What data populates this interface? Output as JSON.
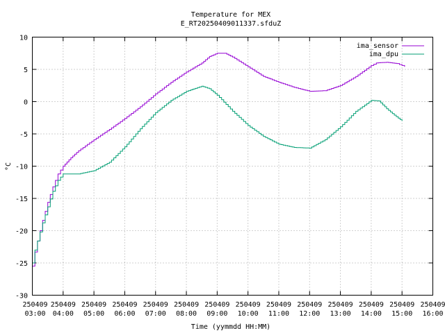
{
  "chart_data": {
    "type": "line",
    "title": "Temperature for MEX",
    "subtitle": "E_RT20250409011337.sfduZ",
    "xlabel": "Time (yymmdd HH:MM)",
    "ylabel": "°C",
    "ylim": [
      -30,
      10
    ],
    "yticks": [
      -30,
      -25,
      -20,
      -15,
      -10,
      -5,
      0,
      5,
      10
    ],
    "xlim": [
      "2025-04-09 03:00",
      "2025-04-09 16:00"
    ],
    "xtick_labels": [
      [
        "250409",
        "03:00"
      ],
      [
        "250409",
        "04:00"
      ],
      [
        "250409",
        "05:00"
      ],
      [
        "250409",
        "06:00"
      ],
      [
        "250409",
        "07:00"
      ],
      [
        "250409",
        "08:00"
      ],
      [
        "250409",
        "09:00"
      ],
      [
        "250409",
        "10:00"
      ],
      [
        "250409",
        "11:00"
      ],
      [
        "250409",
        "12:00"
      ],
      [
        "250409",
        "13:00"
      ],
      [
        "250409",
        "14:00"
      ],
      [
        "250409",
        "15:00"
      ],
      [
        "250409",
        "16:00"
      ]
    ],
    "grid": true,
    "legend_position": "top-right",
    "step": true,
    "series": [
      {
        "name": "ima_sensor",
        "color": "#9400d3",
        "points": [
          [
            "03:00",
            -25.5
          ],
          [
            "03:05",
            -23.3
          ],
          [
            "03:10",
            -21.6
          ],
          [
            "03:20",
            -18.4
          ],
          [
            "03:30",
            -15.6
          ],
          [
            "03:40",
            -13.2
          ],
          [
            "03:50",
            -11.2
          ],
          [
            "04:00",
            -10.0
          ],
          [
            "04:15",
            -8.7
          ],
          [
            "04:30",
            -7.6
          ],
          [
            "05:00",
            -5.9
          ],
          [
            "05:30",
            -4.3
          ],
          [
            "06:00",
            -2.6
          ],
          [
            "06:30",
            -0.8
          ],
          [
            "07:00",
            1.2
          ],
          [
            "07:30",
            3.0
          ],
          [
            "08:00",
            4.6
          ],
          [
            "08:30",
            6.0
          ],
          [
            "08:45",
            7.0
          ],
          [
            "09:00",
            7.5
          ],
          [
            "09:15",
            7.5
          ],
          [
            "09:30",
            6.9
          ],
          [
            "10:00",
            5.4
          ],
          [
            "10:30",
            3.9
          ],
          [
            "11:00",
            3.0
          ],
          [
            "11:30",
            2.2
          ],
          [
            "12:00",
            1.6
          ],
          [
            "12:30",
            1.7
          ],
          [
            "13:00",
            2.5
          ],
          [
            "13:30",
            3.9
          ],
          [
            "14:00",
            5.6
          ],
          [
            "14:10",
            6.0
          ],
          [
            "14:30",
            6.1
          ],
          [
            "14:50",
            5.9
          ],
          [
            "15:00",
            5.6
          ],
          [
            "15:05",
            5.4
          ]
        ]
      },
      {
        "name": "ima_dpu",
        "color": "#009e73",
        "points": [
          [
            "03:00",
            -25.0
          ],
          [
            "03:05",
            -23.0
          ],
          [
            "03:10",
            -21.6
          ],
          [
            "03:20",
            -18.8
          ],
          [
            "03:30",
            -16.3
          ],
          [
            "03:40",
            -13.9
          ],
          [
            "03:50",
            -12.2
          ],
          [
            "04:00",
            -11.2
          ],
          [
            "04:30",
            -11.2
          ],
          [
            "05:00",
            -10.7
          ],
          [
            "05:30",
            -9.4
          ],
          [
            "06:00",
            -7.0
          ],
          [
            "06:30",
            -4.2
          ],
          [
            "07:00",
            -1.7
          ],
          [
            "07:30",
            0.2
          ],
          [
            "08:00",
            1.6
          ],
          [
            "08:30",
            2.4
          ],
          [
            "08:45",
            2.0
          ],
          [
            "09:00",
            1.0
          ],
          [
            "09:30",
            -1.5
          ],
          [
            "10:00",
            -3.7
          ],
          [
            "10:30",
            -5.4
          ],
          [
            "11:00",
            -6.6
          ],
          [
            "11:30",
            -7.1
          ],
          [
            "12:00",
            -7.2
          ],
          [
            "12:30",
            -5.9
          ],
          [
            "13:00",
            -3.9
          ],
          [
            "13:30",
            -1.5
          ],
          [
            "14:00",
            0.2
          ],
          [
            "14:15",
            0.1
          ],
          [
            "14:30",
            -1.1
          ],
          [
            "14:45",
            -2.1
          ],
          [
            "15:00",
            -3.0
          ]
        ]
      }
    ]
  }
}
